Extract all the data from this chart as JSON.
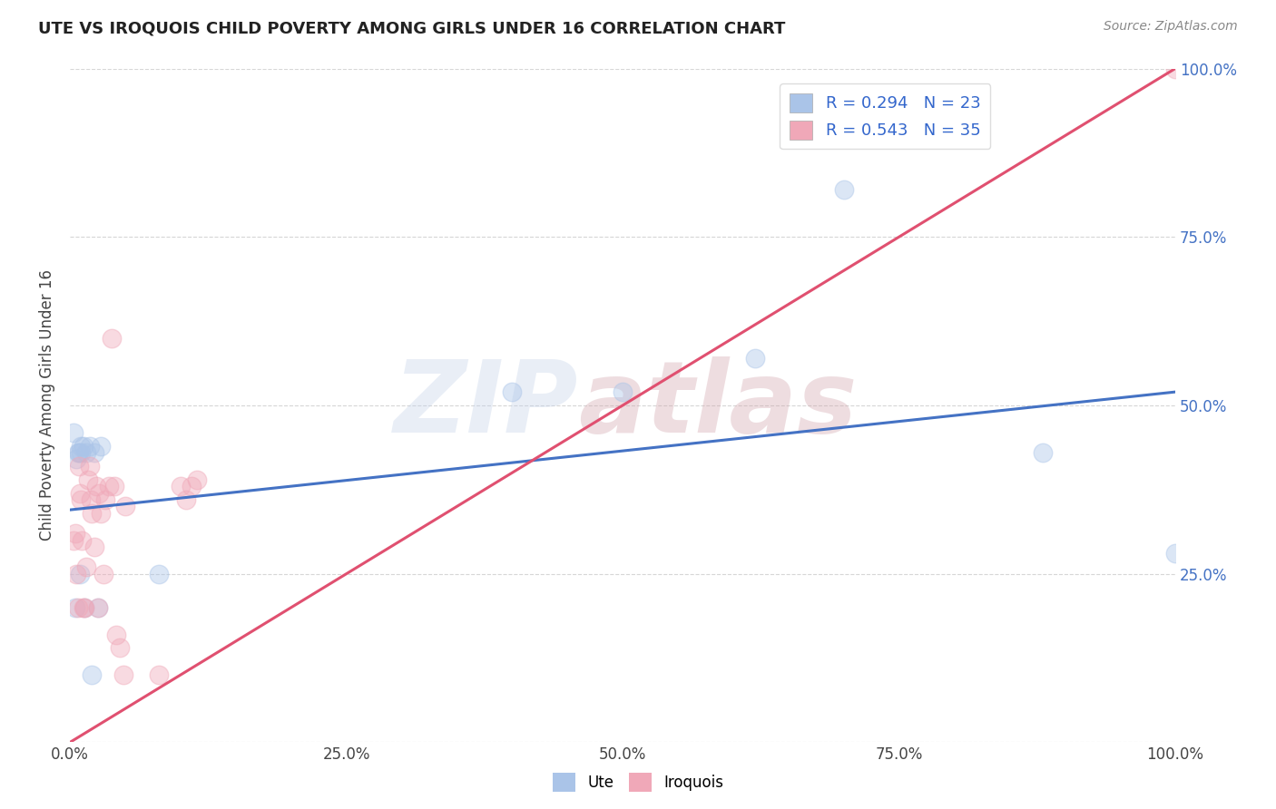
{
  "title": "UTE VS IROQUOIS CHILD POVERTY AMONG GIRLS UNDER 16 CORRELATION CHART",
  "source": "Source: ZipAtlas.com",
  "ylabel": "Child Poverty Among Girls Under 16",
  "ute_R": 0.294,
  "ute_N": 23,
  "iroquois_R": 0.543,
  "iroquois_N": 35,
  "ute_color": "#aac4e8",
  "iroquois_color": "#f0a8b8",
  "ute_line_color": "#4472c4",
  "iroquois_line_color": "#e05070",
  "background_color": "#ffffff",
  "grid_color": "#cccccc",
  "watermark": "ZIPatlas",
  "ute_line_x0": 0.0,
  "ute_line_y0": 0.345,
  "ute_line_x1": 1.0,
  "ute_line_y1": 0.52,
  "iroq_line_x0": 0.0,
  "iroq_line_y0": 0.0,
  "iroq_line_x1": 1.0,
  "iroq_line_y1": 1.0,
  "ute_x": [
    0.003,
    0.005,
    0.006,
    0.007,
    0.008,
    0.009,
    0.01,
    0.01,
    0.012,
    0.013,
    0.015,
    0.018,
    0.02,
    0.022,
    0.025,
    0.028,
    0.08,
    0.4,
    0.5,
    0.62,
    0.7,
    0.88,
    1.0
  ],
  "ute_y": [
    0.46,
    0.2,
    0.42,
    0.43,
    0.43,
    0.25,
    0.43,
    0.44,
    0.44,
    0.2,
    0.43,
    0.44,
    0.1,
    0.43,
    0.2,
    0.44,
    0.25,
    0.52,
    0.52,
    0.57,
    0.82,
    0.43,
    0.28
  ],
  "iroq_x": [
    0.003,
    0.005,
    0.006,
    0.007,
    0.008,
    0.009,
    0.01,
    0.011,
    0.012,
    0.013,
    0.015,
    0.016,
    0.018,
    0.019,
    0.02,
    0.022,
    0.024,
    0.025,
    0.026,
    0.028,
    0.03,
    0.032,
    0.035,
    0.038,
    0.04,
    0.042,
    0.045,
    0.048,
    0.05,
    0.08,
    0.1,
    0.105,
    0.11,
    0.115,
    1.0
  ],
  "iroq_y": [
    0.3,
    0.31,
    0.25,
    0.2,
    0.41,
    0.37,
    0.36,
    0.3,
    0.2,
    0.2,
    0.26,
    0.39,
    0.41,
    0.36,
    0.34,
    0.29,
    0.38,
    0.2,
    0.37,
    0.34,
    0.25,
    0.36,
    0.38,
    0.6,
    0.38,
    0.16,
    0.14,
    0.1,
    0.35,
    0.1,
    0.38,
    0.36,
    0.38,
    0.39,
    1.0
  ],
  "xlim": [
    0.0,
    1.0
  ],
  "ylim": [
    0.0,
    1.0
  ],
  "xticks": [
    0.0,
    0.25,
    0.5,
    0.75,
    1.0
  ],
  "yticks": [
    0.0,
    0.25,
    0.5,
    0.75,
    1.0
  ],
  "xticklabels": [
    "0.0%",
    "25.0%",
    "50.0%",
    "75.0%",
    "100.0%"
  ],
  "right_yticklabels": [
    "",
    "25.0%",
    "50.0%",
    "75.0%",
    "100.0%"
  ]
}
